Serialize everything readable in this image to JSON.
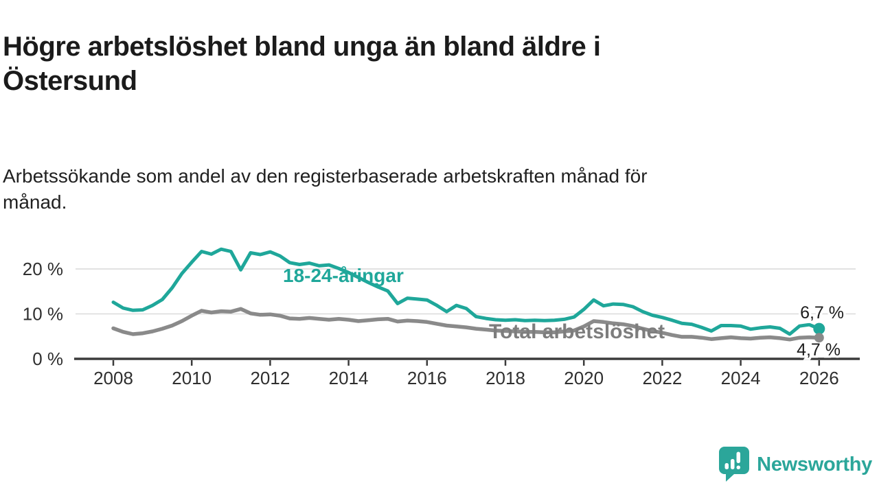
{
  "header": {
    "title_line1": "Högre arbetslöshet bland unga än bland äldre i",
    "title_line2": "Östersund",
    "subtitle_line1": "Arbetssökande som andel av den registerbaserade arbetskraften månad för",
    "subtitle_line2": "månad."
  },
  "footer": {
    "brand": "Newsworthy",
    "brand_color": "#2ba69a",
    "logo_icon": "newsworthy-speech-bubble-bar-chart-icon"
  },
  "chart_data": {
    "type": "line",
    "title": "Högre arbetslöshet bland unga än bland äldre i Östersund",
    "subtitle": "Arbetssökande som andel av den registerbaserade arbetskraften månad för månad.",
    "unit": "%",
    "grid": "horizontal only",
    "legend_position": "inline series labels",
    "x_axis": {
      "range": [
        2008,
        2026
      ],
      "ticks": [
        2008,
        2010,
        2012,
        2014,
        2016,
        2018,
        2020,
        2022,
        2024,
        2026
      ]
    },
    "y_axis": {
      "range": [
        0,
        26
      ],
      "ticks": [
        {
          "value": 0,
          "label": "0 %"
        },
        {
          "value": 10,
          "label": "10 %"
        },
        {
          "value": 20,
          "label": "20 %"
        }
      ],
      "gridlines": [
        10,
        20
      ]
    },
    "colors": {
      "grid": "#d9d9d9",
      "axis": "#3b3b3b",
      "tick_label": "#2f2f2f",
      "end_label": "#1c1c1c"
    },
    "series": [
      {
        "name": "18-24-åringar",
        "color": "#1fa79a",
        "label_color": "#1fa79a",
        "end_label": "6,7 %",
        "end_value": 6.7,
        "start_year": 2008,
        "step_years": 0.25,
        "values": [
          12.6,
          11.3,
          10.8,
          10.9,
          11.9,
          13.2,
          15.8,
          19.0,
          21.5,
          23.9,
          23.3,
          24.4,
          23.9,
          19.8,
          23.6,
          23.2,
          23.8,
          22.9,
          21.4,
          21.0,
          21.3,
          20.7,
          20.9,
          20.1,
          19.2,
          18.1,
          17.0,
          16.0,
          15.1,
          12.3,
          13.5,
          13.3,
          13.1,
          11.9,
          10.5,
          11.9,
          11.2,
          9.4,
          9.0,
          8.7,
          8.6,
          8.7,
          8.5,
          8.6,
          8.5,
          8.6,
          8.8,
          9.3,
          11.0,
          13.1,
          11.8,
          12.2,
          12.1,
          11.6,
          10.5,
          9.7,
          9.2,
          8.6,
          7.9,
          7.7,
          7.0,
          6.2,
          7.4,
          7.4,
          7.3,
          6.6,
          6.9,
          7.1,
          6.8,
          5.5,
          7.3,
          7.6,
          6.7
        ]
      },
      {
        "name": "Total arbetslöshet",
        "color": "#8a8a8a",
        "label_color": "#7d7d7d",
        "end_label": "4,7 %",
        "end_value": 4.7,
        "start_year": 2008,
        "step_years": 0.25,
        "values": [
          6.8,
          6.0,
          5.5,
          5.7,
          6.1,
          6.7,
          7.4,
          8.4,
          9.6,
          10.7,
          10.3,
          10.6,
          10.5,
          11.1,
          10.1,
          9.8,
          9.9,
          9.6,
          9.0,
          8.9,
          9.1,
          8.9,
          8.7,
          8.9,
          8.7,
          8.4,
          8.6,
          8.8,
          8.9,
          8.3,
          8.5,
          8.4,
          8.2,
          7.8,
          7.4,
          7.2,
          7.0,
          6.7,
          6.5,
          6.3,
          6.2,
          6.1,
          6.0,
          6.0,
          5.9,
          5.9,
          6.1,
          6.3,
          7.2,
          8.4,
          8.2,
          7.9,
          7.7,
          7.3,
          6.7,
          6.2,
          5.8,
          5.3,
          4.9,
          4.9,
          4.7,
          4.4,
          4.6,
          4.8,
          4.6,
          4.5,
          4.7,
          4.8,
          4.6,
          4.3,
          4.7,
          4.8,
          4.7
        ]
      }
    ]
  }
}
